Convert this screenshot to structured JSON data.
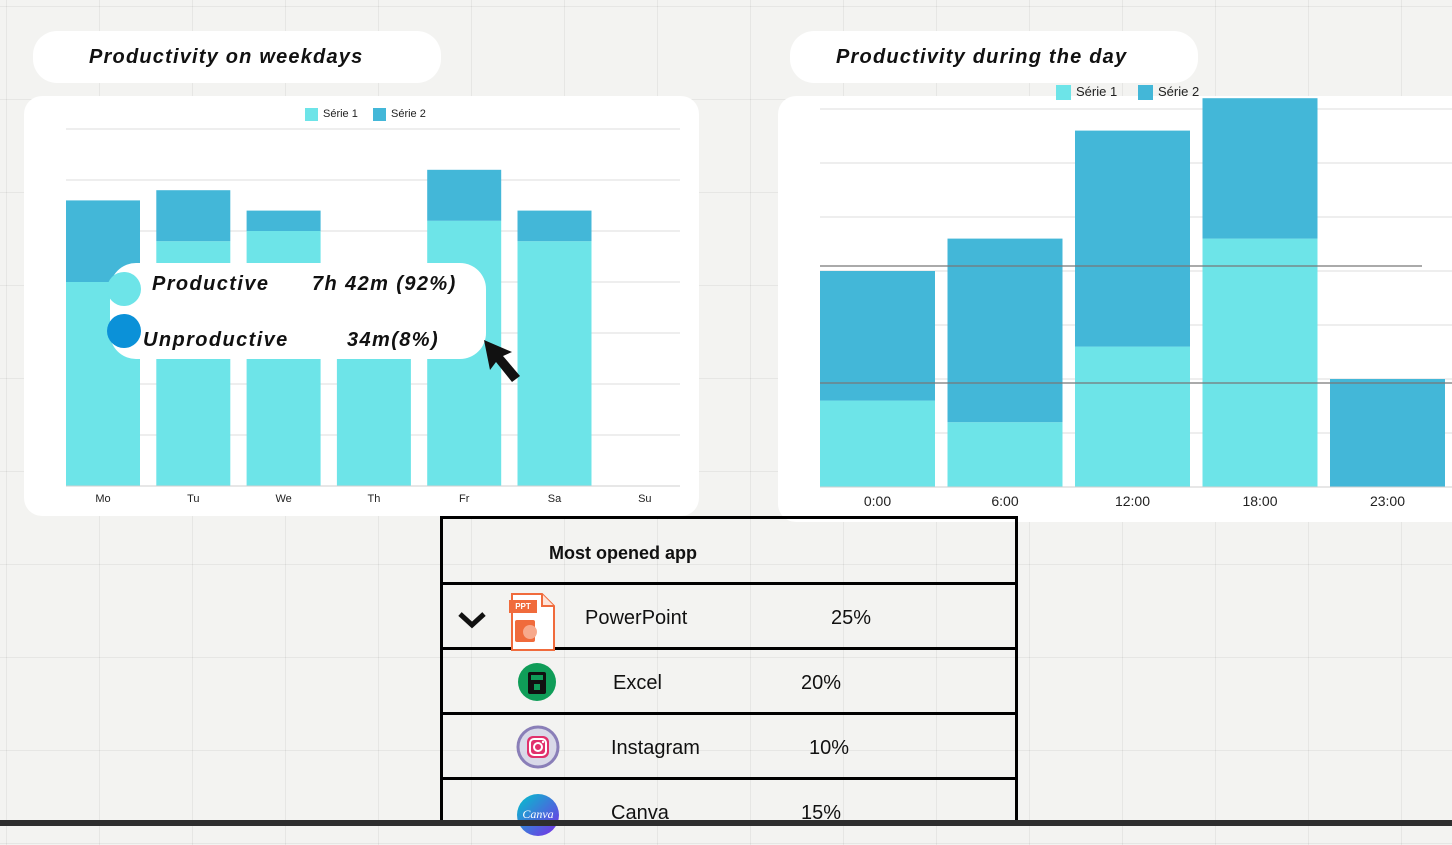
{
  "weekdays_title": "Productivity on weekdays",
  "day_title": "Productivity during the day",
  "tooltip": {
    "productive_label": "Productive",
    "productive_value": "7h 42m (92%)",
    "unproductive_label": "Unproductive",
    "unproductive_value": "34m(8%)"
  },
  "colors": {
    "serie1": "#6de4e8",
    "serie2": "#43b7d8",
    "unproductive_dot": "#0b91d8"
  },
  "chart_data": [
    {
      "type": "bar",
      "stacked": true,
      "title": "Productivity on weekdays",
      "categories": [
        "Mo",
        "Tu",
        "We",
        "Th",
        "Fr",
        "Sa",
        "Su"
      ],
      "series": [
        {
          "name": "Série 1",
          "values": [
            4.0,
            4.8,
            5.0,
            3.4,
            5.2,
            4.8,
            0
          ]
        },
        {
          "name": "Série 2",
          "values": [
            1.6,
            1.0,
            0.4,
            0.6,
            1.0,
            0.6,
            0
          ]
        }
      ],
      "ylim": [
        0,
        7
      ],
      "grid": true,
      "legend": "top-center"
    },
    {
      "type": "bar",
      "stacked": true,
      "title": "Productivity during the day",
      "categories": [
        "0:00",
        "6:00",
        "12:00",
        "18:00",
        "23:00"
      ],
      "series": [
        {
          "name": "Série 1",
          "values": [
            1.6,
            1.2,
            2.6,
            4.6,
            0
          ]
        },
        {
          "name": "Série 2",
          "values": [
            2.4,
            3.4,
            4.0,
            2.6,
            2.0
          ]
        }
      ],
      "ylim": [
        0,
        7
      ],
      "grid": true,
      "legend": "top-center"
    }
  ],
  "table": {
    "header": "Most opened app",
    "rows": [
      {
        "name": "PowerPoint",
        "pct": "25%",
        "icon": "powerpoint-icon",
        "icon_text": "PPT"
      },
      {
        "name": "Excel",
        "pct": "20%",
        "icon": "excel-icon"
      },
      {
        "name": "Instagram",
        "pct": "10%",
        "icon": "instagram-icon"
      },
      {
        "name": "Canva",
        "pct": "15%",
        "icon": "canva-icon",
        "icon_text": "Canva"
      }
    ]
  }
}
